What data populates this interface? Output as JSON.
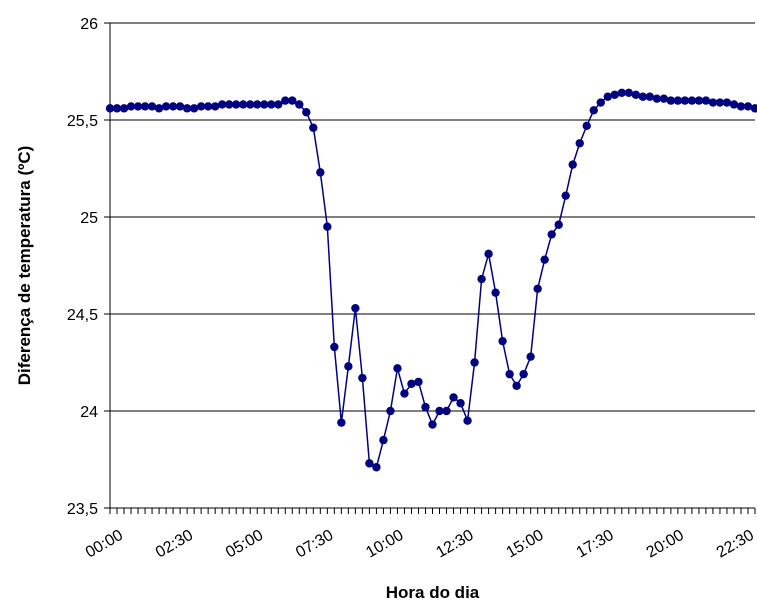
{
  "chart_data": {
    "type": "line",
    "title": "",
    "xlabel": "Hora do dia",
    "ylabel": "Diferença de temperatura (ºC)",
    "ylim": [
      23.5,
      26
    ],
    "yticks": [
      "23,5",
      "24",
      "24,5",
      "25",
      "25,5",
      "26"
    ],
    "xtick_labels": [
      "00:00",
      "02:30",
      "05:00",
      "07:30",
      "10:00",
      "12:30",
      "15:00",
      "17:30",
      "20:00",
      "22:30"
    ],
    "x_step_minutes": 15,
    "grid": "horizontal",
    "series_color": "#000080",
    "series": [
      {
        "values": [
          25.56,
          25.56,
          25.56,
          25.57,
          25.57,
          25.57,
          25.57,
          25.56,
          25.57,
          25.57,
          25.57,
          25.56,
          25.56,
          25.57,
          25.57,
          25.57,
          25.58,
          25.58,
          25.58,
          25.58,
          25.58,
          25.58,
          25.58,
          25.58,
          25.58,
          25.6,
          25.6,
          25.58,
          25.54,
          25.46,
          25.23,
          24.95,
          24.33,
          23.94,
          24.23,
          24.53,
          24.17,
          23.73,
          23.71,
          23.85,
          24.0,
          24.22,
          24.09,
          24.14,
          24.15,
          24.02,
          23.93,
          24.0,
          24.0,
          24.07,
          24.04,
          23.95,
          24.25,
          24.68,
          24.81,
          24.61,
          24.36,
          24.19,
          24.13,
          24.19,
          24.28,
          24.63,
          24.78,
          24.91,
          24.96,
          25.11,
          25.27,
          25.38,
          25.47,
          25.55,
          25.59,
          25.62,
          25.63,
          25.64,
          25.64,
          25.63,
          25.62,
          25.62,
          25.61,
          25.61,
          25.6,
          25.6,
          25.6,
          25.6,
          25.6,
          25.6,
          25.59,
          25.59,
          25.59,
          25.58,
          25.57,
          25.57,
          25.56
        ]
      }
    ]
  }
}
